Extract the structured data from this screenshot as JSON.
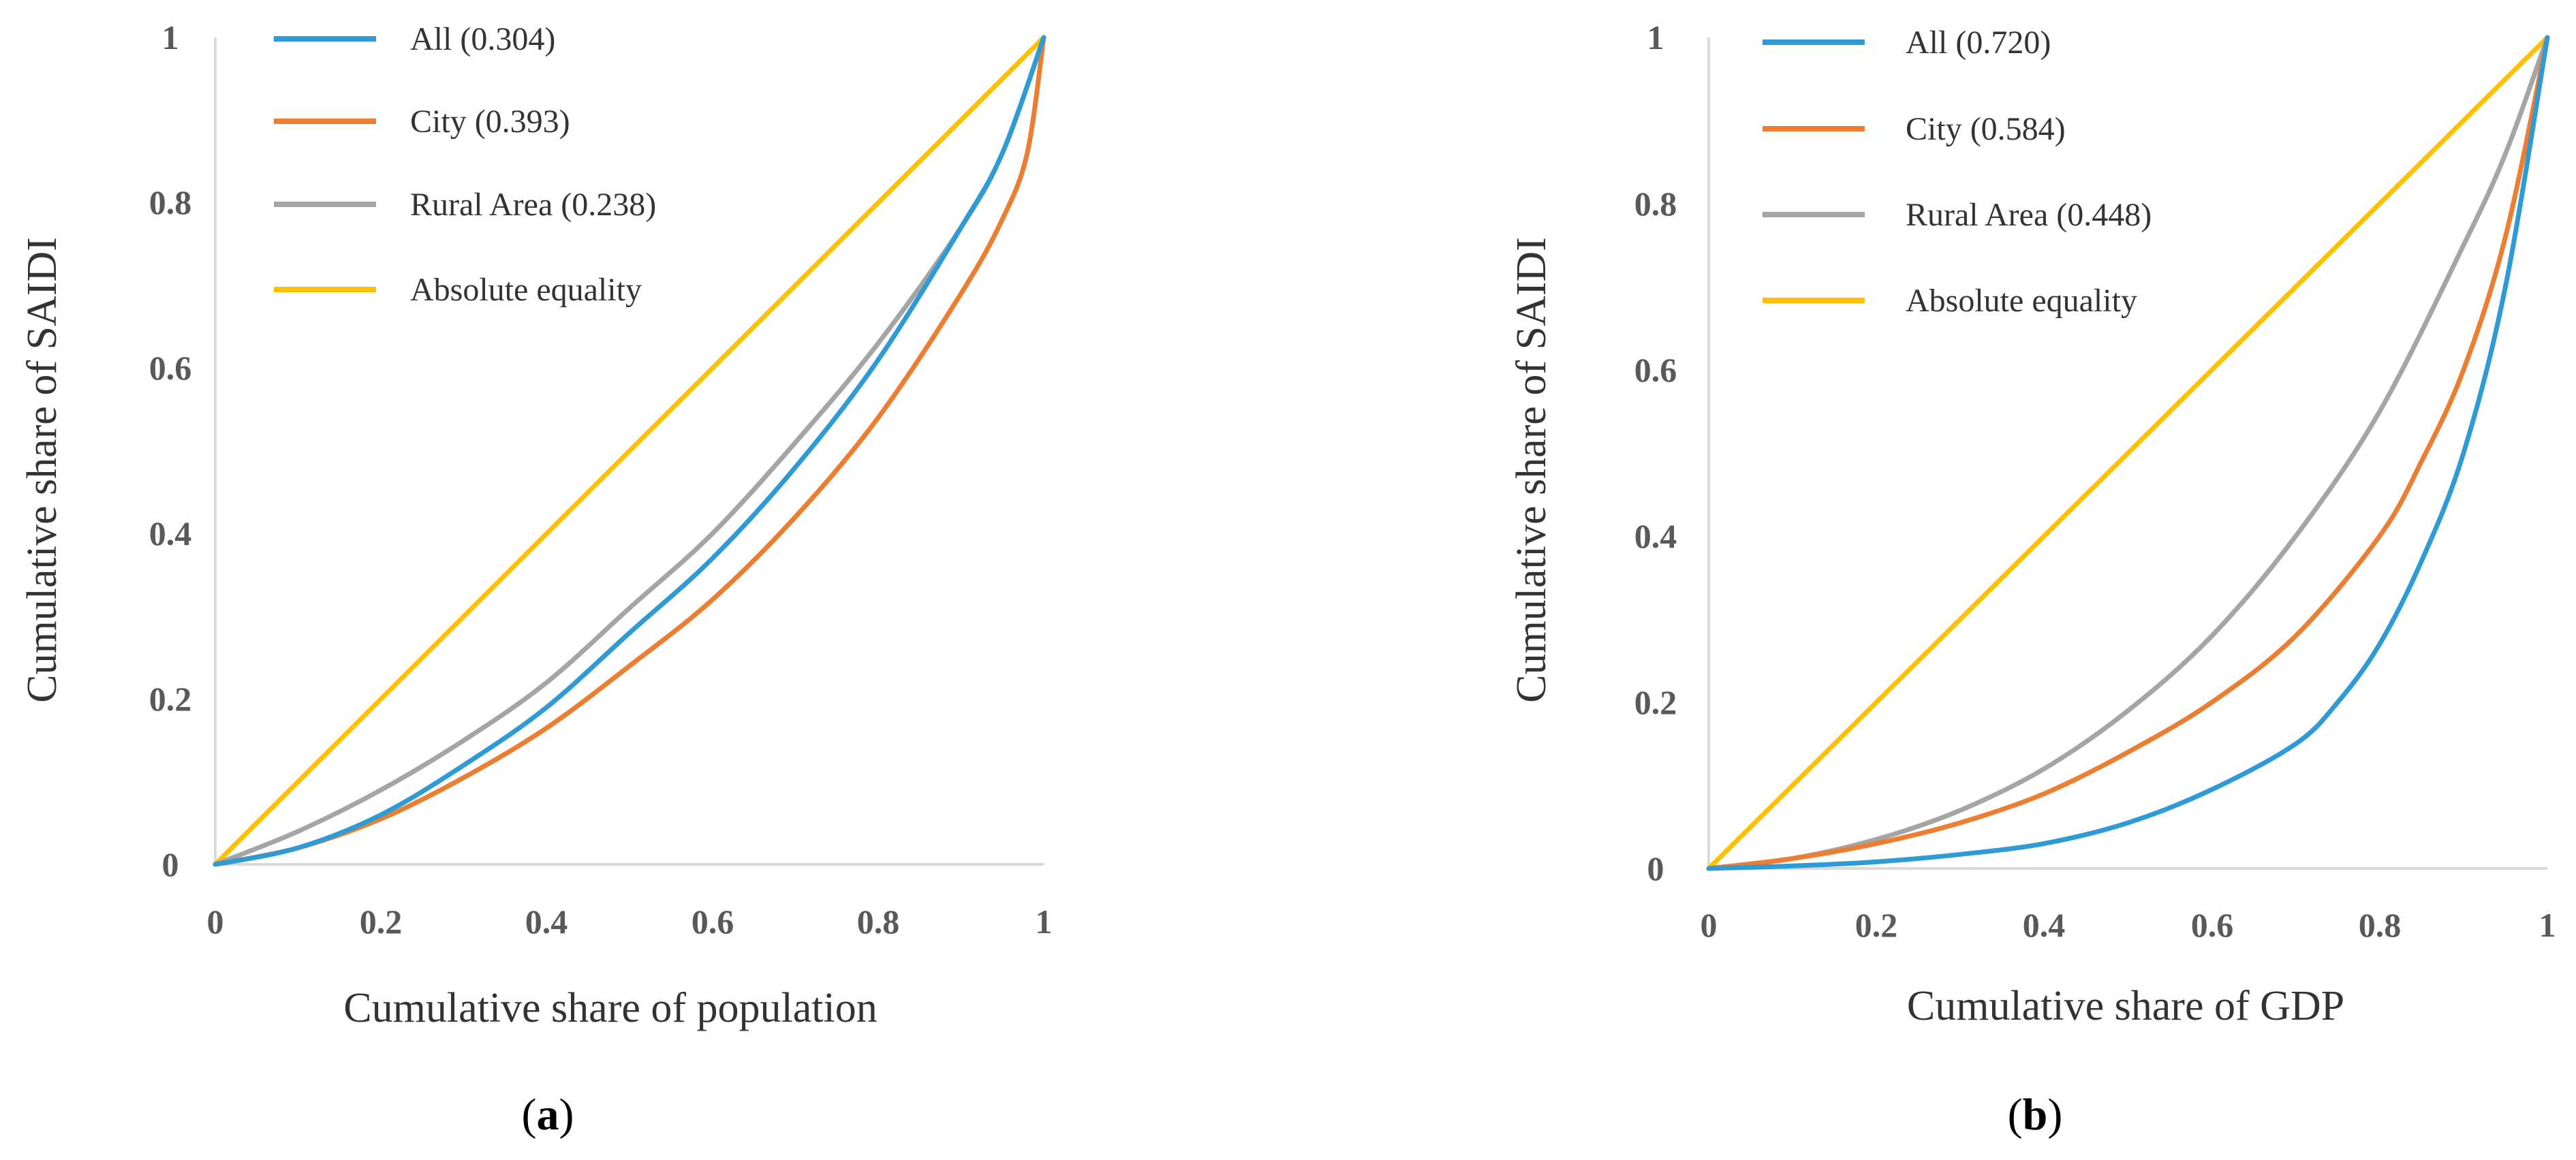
{
  "chart_data": [
    {
      "type": "line",
      "caption": {
        "open": "(",
        "letter": "a",
        "close": ")"
      },
      "xlabel": "Cumulative share of population",
      "ylabel": "Cumulative share of SAIDI",
      "xlim": [
        0,
        1
      ],
      "ylim": [
        0,
        1
      ],
      "x_ticks": [
        "0",
        "0.2",
        "0.4",
        "0.6",
        "0.8",
        "1"
      ],
      "y_ticks": [
        "0",
        "0.2",
        "0.4",
        "0.6",
        "0.8",
        "1"
      ],
      "legend_position": "top-left",
      "series": [
        {
          "name": "All (0.304)",
          "color": "#2e9bd6",
          "x": [
            0,
            0.1,
            0.2,
            0.3,
            0.4,
            0.5,
            0.6,
            0.7,
            0.8,
            0.9,
            0.95,
            1
          ],
          "y": [
            0,
            0.02,
            0.06,
            0.12,
            0.19,
            0.28,
            0.37,
            0.48,
            0.61,
            0.77,
            0.86,
            1
          ]
        },
        {
          "name": "City (0.393)",
          "color": "#ed7d31",
          "x": [
            0,
            0.1,
            0.2,
            0.3,
            0.4,
            0.5,
            0.6,
            0.7,
            0.8,
            0.9,
            0.95,
            0.98,
            1
          ],
          "y": [
            0,
            0.02,
            0.055,
            0.105,
            0.165,
            0.24,
            0.32,
            0.42,
            0.54,
            0.69,
            0.78,
            0.86,
            1
          ]
        },
        {
          "name": "Rural Area (0.238)",
          "color": "#a5a5a5",
          "x": [
            0,
            0.1,
            0.2,
            0.3,
            0.4,
            0.5,
            0.6,
            0.7,
            0.8,
            0.9,
            0.95,
            1
          ],
          "y": [
            0,
            0.04,
            0.09,
            0.15,
            0.22,
            0.31,
            0.4,
            0.51,
            0.63,
            0.77,
            0.86,
            1
          ]
        },
        {
          "name": "Absolute equality",
          "color": "#ffc000",
          "x": [
            0,
            1
          ],
          "y": [
            0,
            1
          ]
        }
      ]
    },
    {
      "type": "line",
      "caption": {
        "open": "(",
        "letter": "b",
        "close": ")"
      },
      "xlabel": "Cumulative share of GDP",
      "ylabel": "Cumulative share of SAIDI",
      "xlim": [
        0,
        1
      ],
      "ylim": [
        0,
        1
      ],
      "x_ticks": [
        "0",
        "0.2",
        "0.4",
        "0.6",
        "0.8",
        "1"
      ],
      "y_ticks": [
        "0",
        "0.2",
        "0.4",
        "0.6",
        "0.8",
        "1"
      ],
      "legend_position": "top-left",
      "series": [
        {
          "name": "All (0.720)",
          "color": "#2e9bd6",
          "x": [
            0,
            0.1,
            0.2,
            0.3,
            0.4,
            0.5,
            0.6,
            0.7,
            0.75,
            0.8,
            0.85,
            0.9,
            0.95,
            1
          ],
          "y": [
            0,
            0.003,
            0.008,
            0.017,
            0.03,
            0.055,
            0.095,
            0.15,
            0.2,
            0.27,
            0.37,
            0.5,
            0.7,
            1
          ]
        },
        {
          "name": "City (0.584)",
          "color": "#ed7d31",
          "x": [
            0,
            0.1,
            0.2,
            0.3,
            0.4,
            0.5,
            0.6,
            0.7,
            0.8,
            0.85,
            0.9,
            0.95,
            1
          ],
          "y": [
            0,
            0.012,
            0.03,
            0.055,
            0.09,
            0.14,
            0.2,
            0.28,
            0.4,
            0.49,
            0.6,
            0.76,
            1
          ]
        },
        {
          "name": "Rural Area (0.448)",
          "color": "#a5a5a5",
          "x": [
            0,
            0.1,
            0.2,
            0.3,
            0.4,
            0.5,
            0.6,
            0.7,
            0.8,
            0.9,
            0.95,
            1
          ],
          "y": [
            0,
            0.012,
            0.035,
            0.07,
            0.12,
            0.19,
            0.28,
            0.4,
            0.55,
            0.75,
            0.86,
            1
          ]
        },
        {
          "name": "Absolute equality",
          "color": "#ffc000",
          "x": [
            0,
            1
          ],
          "y": [
            0,
            1
          ]
        }
      ]
    }
  ]
}
